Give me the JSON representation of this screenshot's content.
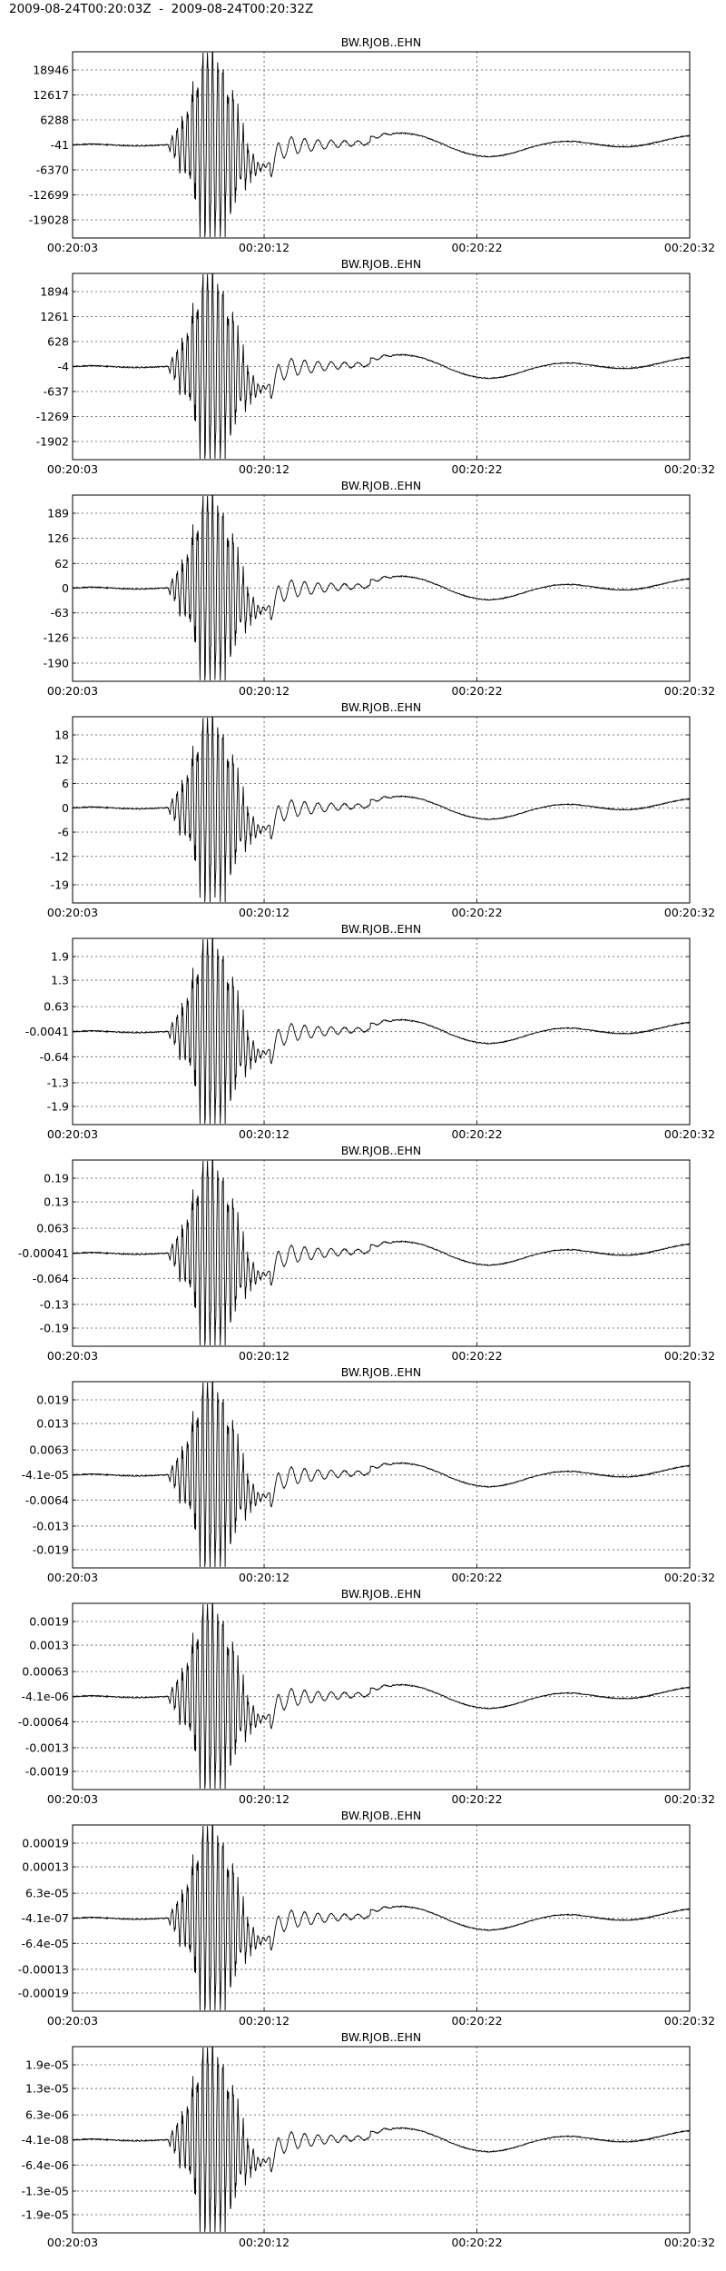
{
  "title": "2009-08-24T00:20:03Z  -  2009-08-24T00:20:32Z",
  "chart_data": [
    {
      "type": "line",
      "title": "BW.RJOB..EHN",
      "x_ticks": [
        "00:20:03",
        "00:20:12",
        "00:20:22",
        "00:20:32"
      ],
      "y_ticks": [
        "18946",
        "12617",
        "6288",
        "-41",
        "-6370",
        "-12699",
        "-19028"
      ],
      "ylim": [
        -25000,
        25000
      ],
      "scale": 10000,
      "grid": true
    },
    {
      "type": "line",
      "title": "BW.RJOB..EHN",
      "x_ticks": [
        "00:20:03",
        "00:20:12",
        "00:20:22",
        "00:20:32"
      ],
      "y_ticks": [
        "1894",
        "1261",
        "628",
        "-4",
        "-637",
        "-1269",
        "-1902"
      ],
      "ylim": [
        -2500,
        2500
      ],
      "scale": 1000,
      "grid": true
    },
    {
      "type": "line",
      "title": "BW.RJOB..EHN",
      "x_ticks": [
        "00:20:03",
        "00:20:12",
        "00:20:22",
        "00:20:32"
      ],
      "y_ticks": [
        "189",
        "126",
        "62",
        "0",
        "-63",
        "-126",
        "-190"
      ],
      "ylim": [
        -250,
        250
      ],
      "scale": 100,
      "grid": true
    },
    {
      "type": "line",
      "title": "BW.RJOB..EHN",
      "x_ticks": [
        "00:20:03",
        "00:20:12",
        "00:20:22",
        "00:20:32"
      ],
      "y_ticks": [
        "18",
        "12",
        "6",
        "0",
        "-6",
        "-12",
        "-19"
      ],
      "ylim": [
        -25,
        25
      ],
      "scale": 10,
      "grid": true
    },
    {
      "type": "line",
      "title": "BW.RJOB..EHN",
      "x_ticks": [
        "00:20:03",
        "00:20:12",
        "00:20:22",
        "00:20:32"
      ],
      "y_ticks": [
        "1.9",
        "1.3",
        "0.63",
        "-0.0041",
        "-0.64",
        "-1.3",
        "-1.9"
      ],
      "ylim": [
        -2.5,
        2.5
      ],
      "scale": 1,
      "grid": true
    },
    {
      "type": "line",
      "title": "BW.RJOB..EHN",
      "x_ticks": [
        "00:20:03",
        "00:20:12",
        "00:20:22",
        "00:20:32"
      ],
      "y_ticks": [
        "0.19",
        "0.13",
        "0.063",
        "-0.00041",
        "-0.064",
        "-0.13",
        "-0.19"
      ],
      "ylim": [
        -0.25,
        0.25
      ],
      "scale": 0.1,
      "grid": true
    },
    {
      "type": "line",
      "title": "BW.RJOB..EHN",
      "x_ticks": [
        "00:20:03",
        "00:20:12",
        "00:20:22",
        "00:20:32"
      ],
      "y_ticks": [
        "0.019",
        "0.013",
        "0.0063",
        "-4.1e-05",
        "-0.0064",
        "-0.013",
        "-0.019"
      ],
      "ylim": [
        -0.025,
        0.025
      ],
      "scale": 0.01,
      "grid": true
    },
    {
      "type": "line",
      "title": "BW.RJOB..EHN",
      "x_ticks": [
        "00:20:03",
        "00:20:12",
        "00:20:22",
        "00:20:32"
      ],
      "y_ticks": [
        "0.0019",
        "0.0013",
        "0.00063",
        "-4.1e-06",
        "-0.00064",
        "-0.0013",
        "-0.0019"
      ],
      "ylim": [
        -0.0025,
        0.0025
      ],
      "scale": 0.001,
      "grid": true
    },
    {
      "type": "line",
      "title": "BW.RJOB..EHN",
      "x_ticks": [
        "00:20:03",
        "00:20:12",
        "00:20:22",
        "00:20:32"
      ],
      "y_ticks": [
        "0.00019",
        "0.00013",
        "6.3e-05",
        "-4.1e-07",
        "-6.4e-05",
        "-0.00013",
        "-0.00019"
      ],
      "ylim": [
        -0.00025,
        0.00025
      ],
      "scale": 0.0001,
      "grid": true
    },
    {
      "type": "line",
      "title": "BW.RJOB..EHN",
      "x_ticks": [
        "00:20:03",
        "00:20:12",
        "00:20:22",
        "00:20:32"
      ],
      "y_ticks": [
        "1.9e-05",
        "1.3e-05",
        "6.3e-06",
        "-4.1e-08",
        "-6.4e-06",
        "-1.3e-05",
        "-1.9e-05"
      ],
      "ylim": [
        -2.5e-05,
        2.5e-05
      ],
      "scale": 1e-05,
      "grid": true
    }
  ]
}
